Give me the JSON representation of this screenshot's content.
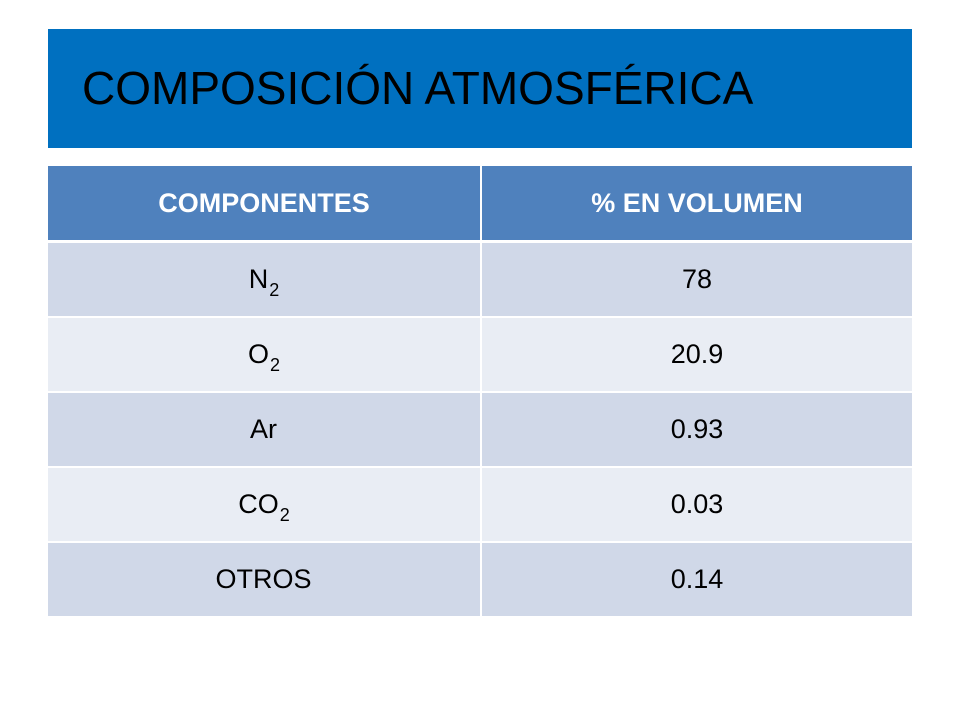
{
  "title": "COMPOSICIÓN ATMOSFÉRICA",
  "table": {
    "headers": [
      "COMPONENTES",
      "% EN VOLUMEN"
    ],
    "rows": [
      {
        "component": "N",
        "subscript": "2",
        "value": "78"
      },
      {
        "component": "O",
        "subscript": "2",
        "value": "20.9"
      },
      {
        "component": "Ar",
        "subscript": "",
        "value": "0.93"
      },
      {
        "component": "CO",
        "subscript": "2",
        "value": "0.03"
      },
      {
        "component": "OTROS",
        "subscript": "",
        "value": "0.14"
      }
    ]
  },
  "colors": {
    "title_bar": "#0070c0",
    "header_bg": "#4f81bd",
    "row_odd": "#d0d8e8",
    "row_even": "#e9edf4"
  }
}
